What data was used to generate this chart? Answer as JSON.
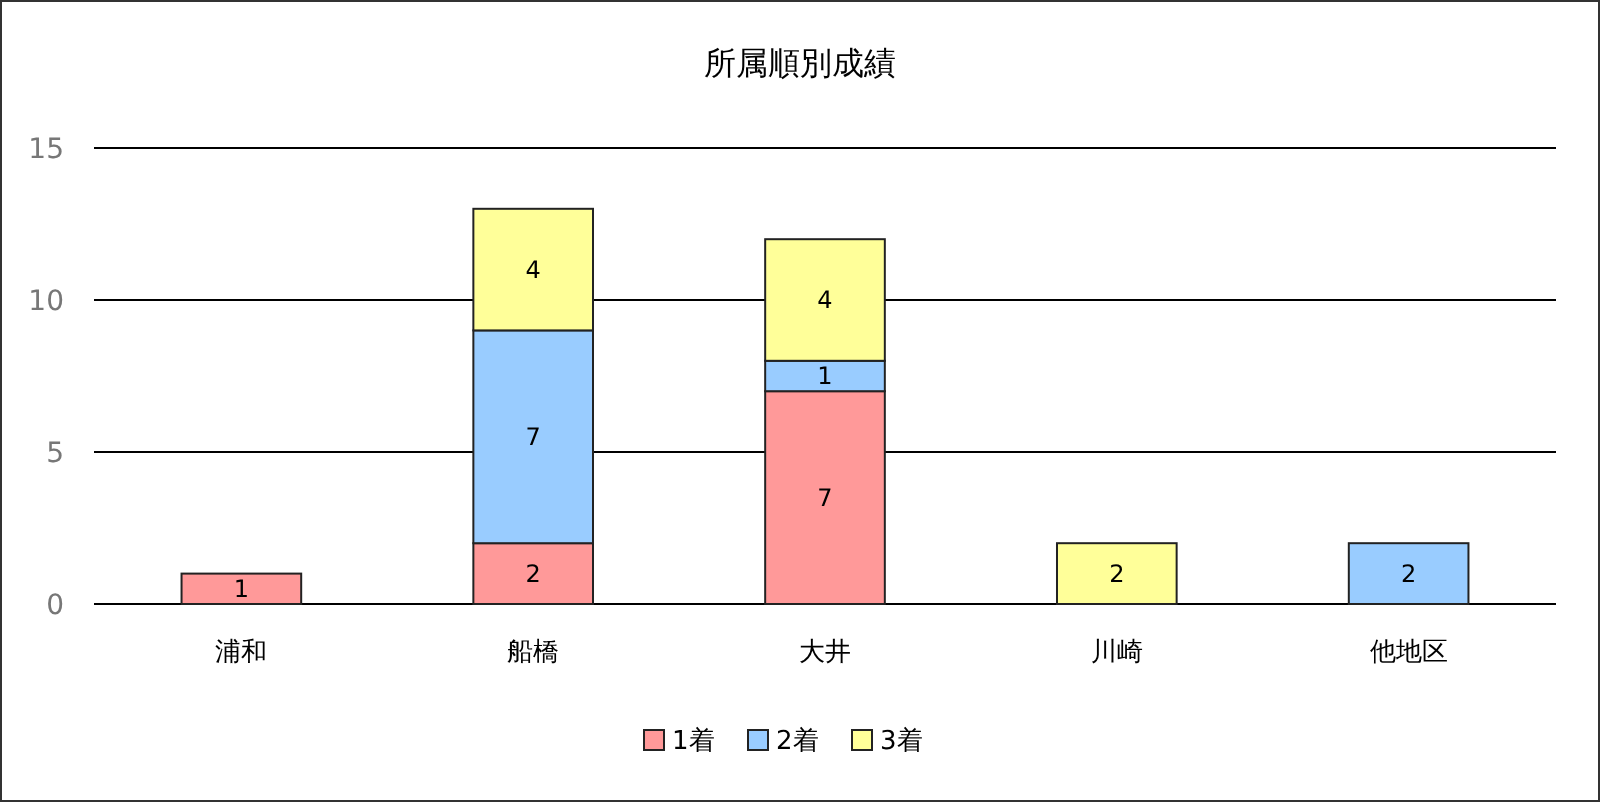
{
  "chart_data": {
    "type": "bar",
    "title": "所属順別成績",
    "categories": [
      "浦和",
      "船橋",
      "大井",
      "川崎",
      "他地区"
    ],
    "stacked": true,
    "series": [
      {
        "name": "1着",
        "color": "#ff9999",
        "values": [
          1,
          2,
          7,
          null,
          null
        ]
      },
      {
        "name": "2着",
        "color": "#99ccff",
        "values": [
          null,
          7,
          1,
          null,
          2
        ]
      },
      {
        "name": "3着",
        "color": "#ffff99",
        "values": [
          null,
          4,
          4,
          2,
          null
        ]
      }
    ],
    "ylim": [
      0,
      15
    ],
    "yticks": [
      0,
      5,
      10,
      15
    ],
    "grid": "y",
    "legend": "bottom",
    "data_labels": true
  }
}
